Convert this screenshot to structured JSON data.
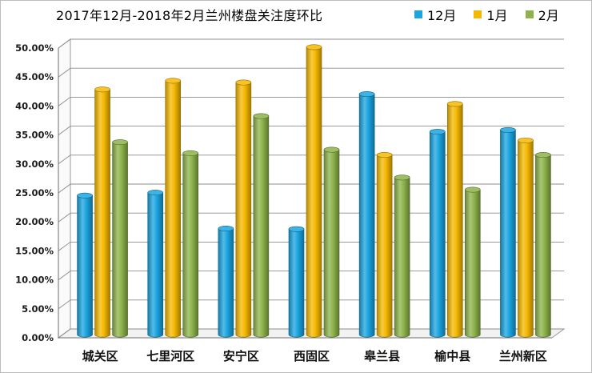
{
  "chart_data": {
    "type": "bar",
    "title": "2017年12月-2018年2月兰州楼盘关注度环比",
    "categories": [
      "城关区",
      "七里河区",
      "安宁区",
      "西固区",
      "皋兰县",
      "榆中县",
      "兰州新区"
    ],
    "series": [
      {
        "name": "12月",
        "color": "#1aa4e0",
        "values": [
          24.0,
          24.5,
          18.3,
          18.2,
          41.5,
          35.0,
          35.3
        ]
      },
      {
        "name": "1月",
        "color": "#f5b800",
        "values": [
          42.3,
          43.8,
          43.5,
          49.6,
          31.0,
          39.8,
          33.5
        ]
      },
      {
        "name": "2月",
        "color": "#8db34a",
        "values": [
          33.2,
          31.3,
          37.7,
          31.9,
          27.1,
          25.0,
          31.0
        ]
      }
    ],
    "yticks": [
      "0.00%",
      "5.00%",
      "10.00%",
      "15.00%",
      "20.00%",
      "25.00%",
      "30.00%",
      "35.00%",
      "40.00%",
      "45.00%",
      "50.00%"
    ],
    "ylim": [
      0,
      50
    ],
    "grid": true,
    "legend_position": "top-right",
    "xlabel": "",
    "ylabel": ""
  }
}
